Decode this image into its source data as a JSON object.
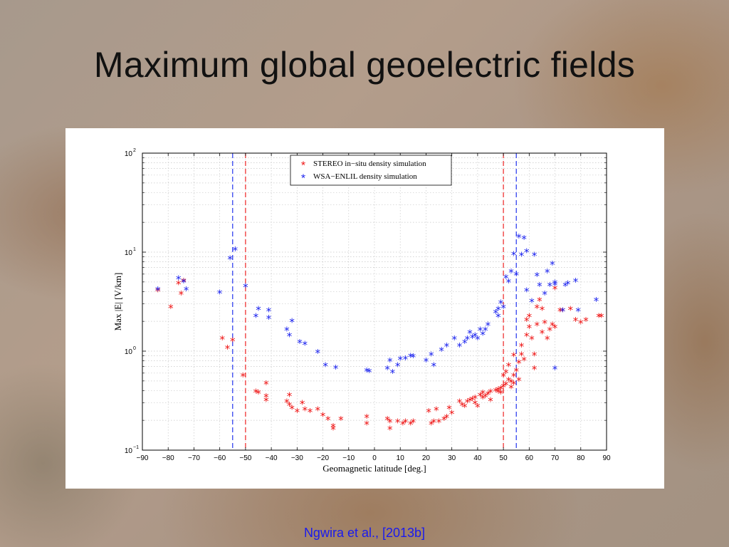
{
  "slide": {
    "title": "Maximum global geoelectric fields",
    "citation": "Ngwira et al., [2013b]"
  },
  "chart_data": {
    "type": "scatter",
    "xlabel": "Geomagnetic latitude [deg.]",
    "ylabel": "Max |E| [V/km]",
    "xlim": [
      -90,
      90
    ],
    "ylim": [
      0.1,
      100
    ],
    "yscale": "log",
    "grid": true,
    "legend_position": "top",
    "x_ticks": [
      "−90",
      "−80",
      "−70",
      "−60",
      "−50",
      "−40",
      "−30",
      "−20",
      "−10",
      "0",
      "10",
      "20",
      "30",
      "40",
      "50",
      "60",
      "70",
      "80",
      "90"
    ],
    "y_ticks": [
      {
        "value": 0.1,
        "base": "10",
        "exp": "−1"
      },
      {
        "value": 1,
        "base": "10",
        "exp": "0"
      },
      {
        "value": 10,
        "base": "10",
        "exp": "1"
      },
      {
        "value": 100,
        "base": "10",
        "exp": "2"
      }
    ],
    "vlines": [
      {
        "x": -55,
        "color": "#2233ee"
      },
      {
        "x": -50,
        "color": "#ee2222"
      },
      {
        "x": 50,
        "color": "#ee2222"
      },
      {
        "x": 55,
        "color": "#2233ee"
      }
    ],
    "series": [
      {
        "name": "STEREO in−situ density simulation",
        "color": "#ee1111",
        "points": [
          [
            -84,
            4.0
          ],
          [
            -79,
            2.7
          ],
          [
            -76,
            4.7
          ],
          [
            -75,
            3.7
          ],
          [
            -74,
            5.0
          ],
          [
            -59,
            1.3
          ],
          [
            -57,
            1.05
          ],
          [
            -55,
            1.25
          ],
          [
            -51,
            0.55
          ],
          [
            -46,
            0.38
          ],
          [
            -45,
            0.37
          ],
          [
            -42,
            0.46
          ],
          [
            -42,
            0.34
          ],
          [
            -42,
            0.31
          ],
          [
            -34,
            0.3
          ],
          [
            -33,
            0.28
          ],
          [
            -33,
            0.35
          ],
          [
            -32,
            0.26
          ],
          [
            -30,
            0.24
          ],
          [
            -28,
            0.29
          ],
          [
            -27,
            0.25
          ],
          [
            -25,
            0.24
          ],
          [
            -22,
            0.25
          ],
          [
            -20,
            0.22
          ],
          [
            -18,
            0.2
          ],
          [
            -16,
            0.17
          ],
          [
            -16,
            0.16
          ],
          [
            -13,
            0.2
          ],
          [
            -3,
            0.18
          ],
          [
            -3,
            0.21
          ],
          [
            5,
            0.2
          ],
          [
            6,
            0.19
          ],
          [
            6,
            0.16
          ],
          [
            9,
            0.19
          ],
          [
            11,
            0.18
          ],
          [
            12,
            0.19
          ],
          [
            14,
            0.18
          ],
          [
            15,
            0.19
          ],
          [
            21,
            0.24
          ],
          [
            22,
            0.18
          ],
          [
            23,
            0.19
          ],
          [
            24,
            0.25
          ],
          [
            25,
            0.19
          ],
          [
            27,
            0.2
          ],
          [
            28,
            0.21
          ],
          [
            29,
            0.26
          ],
          [
            30,
            0.23
          ],
          [
            33,
            0.3
          ],
          [
            34,
            0.28
          ],
          [
            35,
            0.27
          ],
          [
            36,
            0.3
          ],
          [
            37,
            0.31
          ],
          [
            38,
            0.32
          ],
          [
            39,
            0.33
          ],
          [
            39,
            0.29
          ],
          [
            40,
            0.27
          ],
          [
            41,
            0.35
          ],
          [
            42,
            0.33
          ],
          [
            42,
            0.37
          ],
          [
            43,
            0.34
          ],
          [
            44,
            0.36
          ],
          [
            45,
            0.38
          ],
          [
            45,
            0.31
          ],
          [
            47,
            0.39
          ],
          [
            48,
            0.4
          ],
          [
            48,
            0.38
          ],
          [
            49,
            0.41
          ],
          [
            49,
            0.37
          ],
          [
            50,
            0.43
          ],
          [
            50,
            0.55
          ],
          [
            51,
            0.6
          ],
          [
            51,
            0.45
          ],
          [
            52,
            0.5
          ],
          [
            52,
            0.7
          ],
          [
            53,
            0.42
          ],
          [
            53,
            0.48
          ],
          [
            54,
            0.55
          ],
          [
            54,
            0.46
          ],
          [
            54,
            0.88
          ],
          [
            55,
            0.62
          ],
          [
            56,
            0.5
          ],
          [
            56,
            0.75
          ],
          [
            57,
            0.9
          ],
          [
            57,
            1.1
          ],
          [
            58,
            0.8
          ],
          [
            59,
            1.4
          ],
          [
            59,
            2.0
          ],
          [
            60,
            2.2
          ],
          [
            60,
            1.7
          ],
          [
            61,
            1.3
          ],
          [
            62,
            0.65
          ],
          [
            62,
            0.9
          ],
          [
            63,
            1.8
          ],
          [
            63,
            2.7
          ],
          [
            64,
            3.2
          ],
          [
            65,
            2.6
          ],
          [
            65,
            1.5
          ],
          [
            66,
            1.9
          ],
          [
            67,
            1.3
          ],
          [
            68,
            1.6
          ],
          [
            69,
            1.8
          ],
          [
            70,
            4.2
          ],
          [
            70,
            1.7
          ],
          [
            72,
            2.5
          ],
          [
            73,
            2.5
          ],
          [
            76,
            2.6
          ],
          [
            78,
            2.0
          ],
          [
            80,
            1.9
          ],
          [
            82,
            2.0
          ],
          [
            87,
            2.2
          ],
          [
            88,
            2.2
          ]
        ]
      },
      {
        "name": "WSA−ENLIL density simulation",
        "color": "#1a22ee",
        "points": [
          [
            -84,
            4.1
          ],
          [
            -76,
            5.3
          ],
          [
            -74,
            4.9
          ],
          [
            -73,
            4.1
          ],
          [
            -60,
            3.8
          ],
          [
            -56,
            8.4
          ],
          [
            -54,
            10.3
          ],
          [
            -50,
            4.4
          ],
          [
            -46,
            2.2
          ],
          [
            -45,
            2.6
          ],
          [
            -41,
            2.1
          ],
          [
            -41,
            2.5
          ],
          [
            -34,
            1.6
          ],
          [
            -33,
            1.4
          ],
          [
            -32,
            1.95
          ],
          [
            -29,
            1.2
          ],
          [
            -27,
            1.15
          ],
          [
            -22,
            0.95
          ],
          [
            -19,
            0.7
          ],
          [
            -15,
            0.66
          ],
          [
            -3,
            0.62
          ],
          [
            -2,
            0.61
          ],
          [
            5,
            0.65
          ],
          [
            6,
            0.78
          ],
          [
            7,
            0.6
          ],
          [
            9,
            0.7
          ],
          [
            10,
            0.81
          ],
          [
            12,
            0.82
          ],
          [
            14,
            0.87
          ],
          [
            15,
            0.86
          ],
          [
            20,
            0.78
          ],
          [
            22,
            0.9
          ],
          [
            23,
            0.7
          ],
          [
            26,
            1.0
          ],
          [
            28,
            1.1
          ],
          [
            31,
            1.3
          ],
          [
            33,
            1.1
          ],
          [
            35,
            1.2
          ],
          [
            36,
            1.3
          ],
          [
            37,
            1.5
          ],
          [
            38,
            1.35
          ],
          [
            39,
            1.4
          ],
          [
            40,
            1.3
          ],
          [
            41,
            1.6
          ],
          [
            42,
            1.45
          ],
          [
            43,
            1.6
          ],
          [
            44,
            1.8
          ],
          [
            47,
            2.4
          ],
          [
            48,
            2.6
          ],
          [
            48,
            2.2
          ],
          [
            49,
            3.0
          ],
          [
            50,
            2.7
          ],
          [
            51,
            5.4
          ],
          [
            52,
            4.9
          ],
          [
            53,
            6.2
          ],
          [
            54,
            9.3
          ],
          [
            55,
            5.8
          ],
          [
            56,
            13.9
          ],
          [
            57,
            9.1
          ],
          [
            58,
            13.5
          ],
          [
            59,
            9.9
          ],
          [
            59,
            4.0
          ],
          [
            61,
            3.1
          ],
          [
            62,
            9.1
          ],
          [
            63,
            5.7
          ],
          [
            64,
            4.5
          ],
          [
            66,
            3.7
          ],
          [
            67,
            6.2
          ],
          [
            68,
            4.5
          ],
          [
            69,
            7.4
          ],
          [
            70,
            4.6
          ],
          [
            70,
            4.8
          ],
          [
            70,
            0.65
          ],
          [
            73,
            2.5
          ],
          [
            74,
            4.5
          ],
          [
            75,
            4.7
          ],
          [
            78,
            5.0
          ],
          [
            79,
            2.5
          ],
          [
            86,
            3.2
          ]
        ]
      }
    ]
  }
}
